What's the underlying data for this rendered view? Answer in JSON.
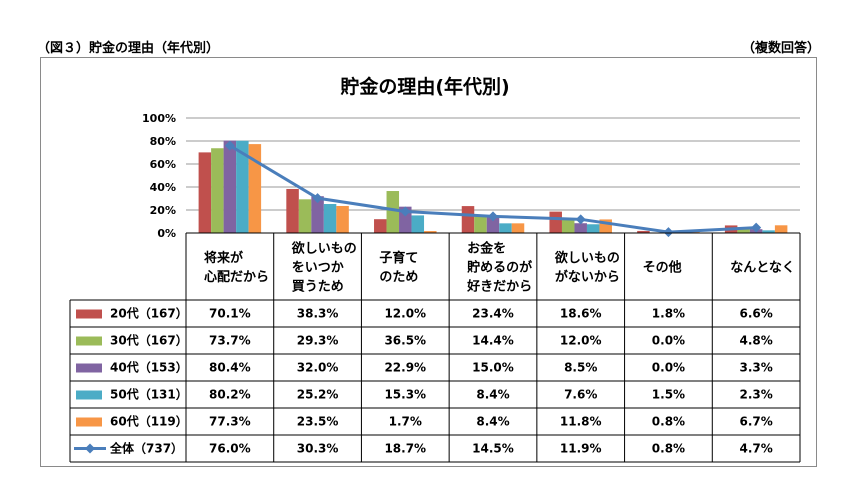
{
  "header": {
    "left": "（図３）貯金の理由（年代別）",
    "right": "（複数回答）"
  },
  "chart_data": {
    "type": "bar",
    "title": "貯金の理由(年代別)",
    "yticks": [
      "100%",
      "80%",
      "60%",
      "40%",
      "20%",
      "0%"
    ],
    "ylim": [
      0,
      100
    ],
    "categories": [
      [
        "将来が",
        "心配だから"
      ],
      [
        "欲しいもの",
        "をいつか",
        "買うため"
      ],
      [
        "子育て",
        "のため"
      ],
      [
        "お金を",
        "貯めるのが",
        "好きだから"
      ],
      [
        "欲しいもの",
        "がないから"
      ],
      [
        "その他"
      ],
      [
        "なんとなく"
      ]
    ],
    "series": [
      {
        "name": "20代（167）",
        "color": "#c0504d",
        "values": [
          70.1,
          38.3,
          12.0,
          23.4,
          18.6,
          1.8,
          6.6
        ],
        "labels": [
          "70.1%",
          "38.3%",
          "12.0%",
          "23.4%",
          "18.6%",
          "1.8%",
          "6.6%"
        ]
      },
      {
        "name": "30代（167）",
        "color": "#9bbb59",
        "values": [
          73.7,
          29.3,
          36.5,
          14.4,
          12.0,
          0.0,
          4.8
        ],
        "labels": [
          "73.7%",
          "29.3%",
          "36.5%",
          "14.4%",
          "12.0%",
          "0.0%",
          "4.8%"
        ]
      },
      {
        "name": "40代（153）",
        "color": "#8064a2",
        "values": [
          80.4,
          32.0,
          22.9,
          15.0,
          8.5,
          0.0,
          3.3
        ],
        "labels": [
          "80.4%",
          "32.0%",
          "22.9%",
          "15.0%",
          "8.5%",
          "0.0%",
          "3.3%"
        ]
      },
      {
        "name": "50代（131）",
        "color": "#4bacc6",
        "values": [
          80.2,
          25.2,
          15.3,
          8.4,
          7.6,
          1.5,
          2.3
        ],
        "labels": [
          "80.2%",
          "25.2%",
          "15.3%",
          "8.4%",
          "7.6%",
          "1.5%",
          "2.3%"
        ]
      },
      {
        "name": "60代（119）",
        "color": "#f79646",
        "values": [
          77.3,
          23.5,
          1.7,
          8.4,
          11.8,
          0.8,
          6.7
        ],
        "labels": [
          "77.3%",
          "23.5%",
          "1.7%",
          "8.4%",
          "11.8%",
          "0.8%",
          "6.7%"
        ]
      }
    ],
    "line": {
      "name": "全体（737）",
      "color": "#4a7ebb",
      "values": [
        76.0,
        30.3,
        18.7,
        14.5,
        11.9,
        0.8,
        4.7
      ],
      "labels": [
        "76.0%",
        "30.3%",
        "18.7%",
        "14.5%",
        "11.9%",
        "0.8%",
        "4.7%"
      ]
    },
    "grid": true,
    "legend": "table-left"
  }
}
